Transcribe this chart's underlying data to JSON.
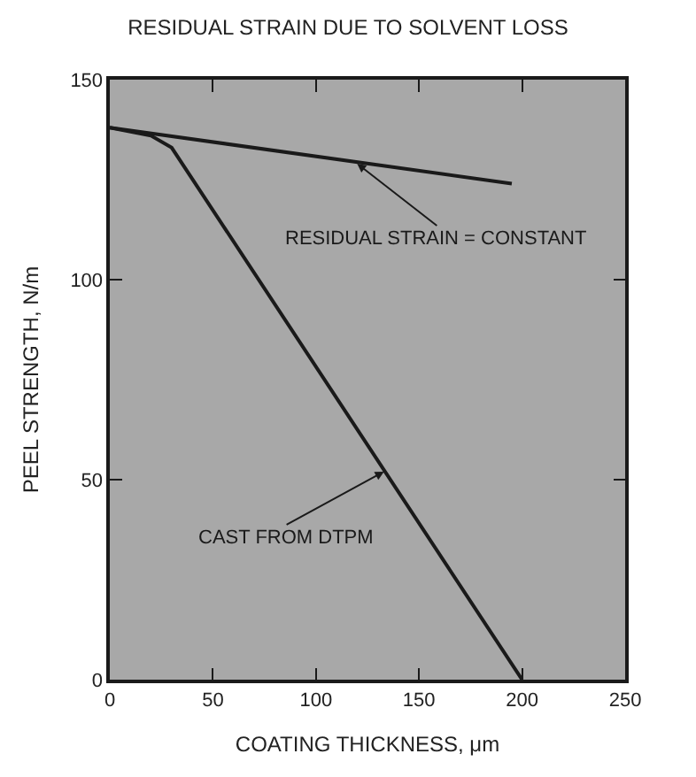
{
  "chart_data": {
    "type": "line",
    "title": "RESIDUAL STRAIN DUE TO SOLVENT LOSS",
    "xlabel": "COATING THICKNESS, μm",
    "ylabel": "PEEL STRENGTH, N/m",
    "series": [
      {
        "color": "#1a1a1a",
        "x": [
          0,
          195
        ],
        "values": [
          138,
          124
        ]
      },
      {
        "color": "#1a1a1a",
        "x": [
          0,
          20,
          30,
          200
        ],
        "values": [
          138,
          136,
          133,
          0
        ]
      }
    ],
    "annotations": [
      {
        "text": "RESIDUAL STRAIN = CONSTANT",
        "x": 120,
        "y": 129
      },
      {
        "text": "CAST FROM DTPM",
        "x": 133,
        "y": 52
      }
    ],
    "xlim": [
      0,
      250
    ],
    "ylim": [
      0,
      150
    ],
    "xticks": [
      0,
      50,
      100,
      150,
      200,
      250
    ],
    "yticks": [
      0,
      50,
      100,
      150
    ],
    "grid": false,
    "marker": "none",
    "line_style": "solid"
  }
}
